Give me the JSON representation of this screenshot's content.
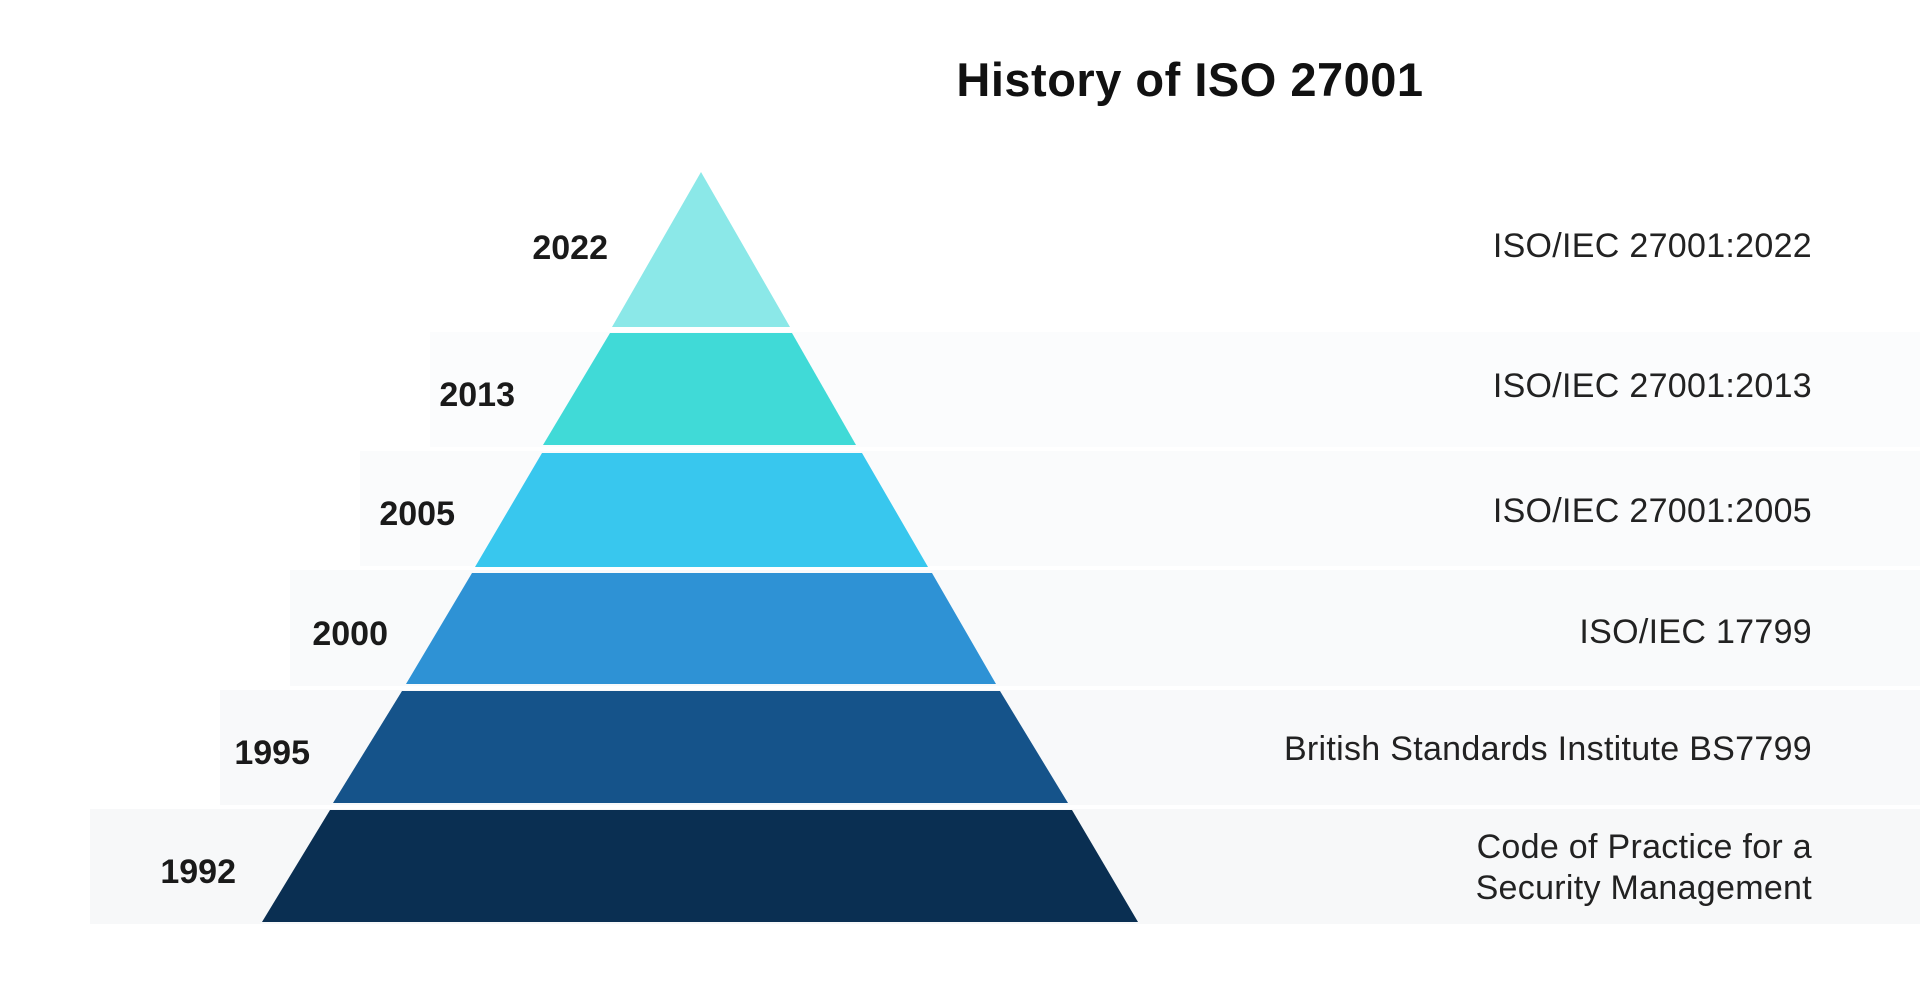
{
  "title": "History of ISO 27001",
  "levels": [
    {
      "year": "2022",
      "label_lines": [
        "ISO/IEC 27001:2022"
      ],
      "color": "#8BE8E8"
    },
    {
      "year": "2013",
      "label_lines": [
        "ISO/IEC 27001:2013"
      ],
      "color": "#40DAD7"
    },
    {
      "year": "2005",
      "label_lines": [
        "ISO/IEC 27001:2005"
      ],
      "color": "#38C7EE"
    },
    {
      "year": "2000",
      "label_lines": [
        "ISO/IEC 17799"
      ],
      "color": "#2E92D5"
    },
    {
      "year": "1995",
      "label_lines": [
        "British Standards Institute BS7799"
      ],
      "color": "#15538A"
    },
    {
      "year": "1992",
      "label_lines": [
        "Code of Practice for a",
        "Security Management"
      ],
      "color": "#0A2F52"
    }
  ]
}
